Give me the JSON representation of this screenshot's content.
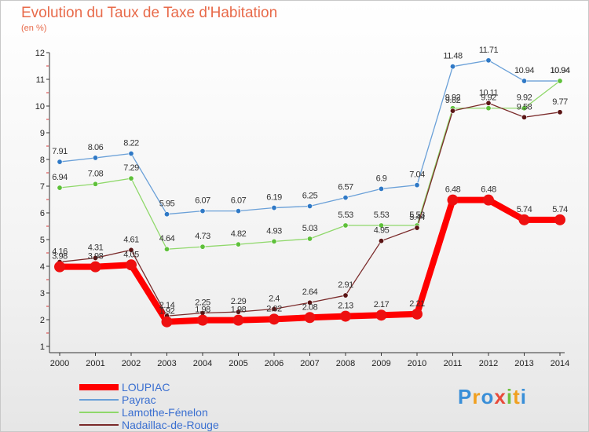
{
  "title": "Evolution du Taux de Taxe d'Habitation",
  "subtitle": "(en %)",
  "logo": {
    "text": "Proxiti",
    "letters": [
      "P",
      "r",
      "o",
      "x",
      "i",
      "t",
      "i"
    ],
    "colors": [
      "#3a8fd8",
      "#f0a020",
      "#3a8fd8",
      "#e84a3a",
      "#70c040",
      "#f0a020",
      "#3a8fd8"
    ]
  },
  "chart_data": {
    "type": "line",
    "categories": [
      "2000",
      "2001",
      "2002",
      "2003",
      "2004",
      "2005",
      "2006",
      "2007",
      "2008",
      "2009",
      "2010",
      "2011",
      "2012",
      "2013",
      "2014"
    ],
    "ylim": [
      1,
      12
    ],
    "yticks": [
      "1",
      "2",
      "3",
      "4",
      "5",
      "6",
      "7",
      "8",
      "9",
      "10",
      "11",
      "12"
    ],
    "grid": false,
    "legend_position": "bottom-left",
    "series": [
      {
        "name": "LOUPIAC",
        "color": "#ff0000",
        "marker": "#ee1010",
        "thick": true,
        "values": [
          3.98,
          3.98,
          4.05,
          1.92,
          1.98,
          1.98,
          2.02,
          2.08,
          2.13,
          2.17,
          2.21,
          6.48,
          6.48,
          5.74,
          5.74
        ],
        "labels": [
          "3.98",
          "3.98",
          "4.05",
          "1.92",
          "1.98",
          "1.98",
          "2.02",
          "2.08",
          "2.13",
          "2.17",
          "2.21",
          "6.48",
          "6.48",
          "5.74",
          "5.74"
        ]
      },
      {
        "name": "Payrac",
        "color": "#6aa0d8",
        "marker": "#2f79c6",
        "values": [
          7.91,
          8.06,
          8.22,
          5.95,
          6.07,
          6.07,
          6.19,
          6.25,
          6.57,
          6.9,
          7.04,
          11.48,
          11.71,
          10.94,
          10.94
        ],
        "labels": [
          "7.91",
          "8.06",
          "8.22",
          "5.95",
          "6.07",
          "6.07",
          "6.19",
          "6.25",
          "6.57",
          "6.9",
          "7.04",
          "11.48",
          "11.71",
          "10.94",
          "10.94"
        ]
      },
      {
        "name": "Lamothe-Fénelon",
        "color": "#8fd86a",
        "marker": "#5ec03a",
        "values": [
          6.94,
          7.08,
          7.29,
          4.64,
          4.73,
          4.82,
          4.93,
          5.03,
          5.53,
          5.53,
          5.53,
          9.92,
          9.92,
          9.92,
          10.94
        ],
        "labels": [
          "6.94",
          "7.08",
          "7.29",
          "4.64",
          "4.73",
          "4.82",
          "4.93",
          "5.03",
          "5.53",
          "5.53",
          "5.53",
          "9.92",
          "9.92",
          "9.92",
          "10.94"
        ]
      },
      {
        "name": "Nadaillac-de-Rouge",
        "color": "#7a2a2a",
        "marker": "#5a1414",
        "values": [
          4.16,
          4.31,
          4.61,
          2.14,
          2.25,
          2.29,
          2.4,
          2.64,
          2.91,
          4.95,
          5.44,
          9.82,
          10.11,
          9.58,
          9.77
        ],
        "labels": [
          "4.16",
          "4.31",
          "4.61",
          "2.14",
          "2.25",
          "2.29",
          "2.4",
          "2.64",
          "2.91",
          "4.95",
          "5.44",
          "9.82",
          "10.11",
          "9.58",
          "9.77"
        ]
      }
    ]
  }
}
